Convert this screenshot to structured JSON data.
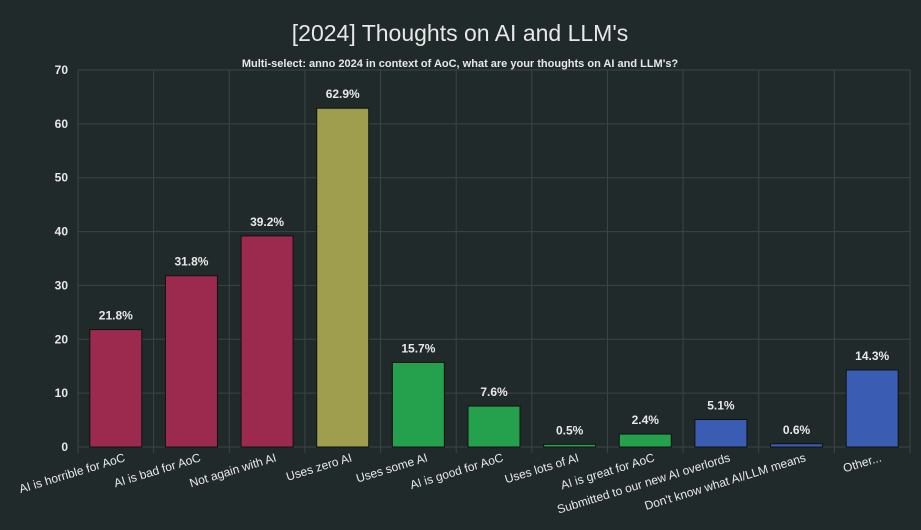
{
  "chart_data": {
    "type": "bar",
    "title": "[2024] Thoughts on AI and LLM's",
    "subtitle": "Multi-select: anno 2024 in context of AoC, what are your thoughts on AI and LLM's?",
    "xlabel": "",
    "ylabel": "",
    "ylim": [
      0,
      70
    ],
    "yticks": [
      "0",
      "10",
      "20",
      "30",
      "40",
      "50",
      "60",
      "70"
    ],
    "grid": true,
    "categories": [
      "AI is horrible for AoC",
      "AI is bad for AoC",
      "Not again with AI",
      "Uses zero AI",
      "Uses some AI",
      "AI is good for AoC",
      "Uses lots of AI",
      "AI is great for AoC",
      "Submitted to our new AI overlords",
      "Don't know what AI/LLM means",
      "Other..."
    ],
    "values": [
      21.8,
      31.8,
      39.2,
      62.9,
      15.7,
      7.6,
      0.5,
      2.4,
      5.1,
      0.6,
      14.3
    ],
    "value_labels": [
      "21.8%",
      "31.8%",
      "39.2%",
      "62.9%",
      "15.7%",
      "7.6%",
      "0.5%",
      "2.4%",
      "5.1%",
      "0.6%",
      "14.3%"
    ],
    "bar_colors": [
      "#9b2a4e",
      "#9b2a4e",
      "#9b2a4e",
      "#9e9e4e",
      "#25a04c",
      "#25a04c",
      "#25a04c",
      "#25a04c",
      "#3a5db3",
      "#3a5db3",
      "#3a5db3"
    ]
  },
  "colors": {
    "background": "#212a2b",
    "grid": "#3b4546",
    "text": "#e8e8e8"
  }
}
